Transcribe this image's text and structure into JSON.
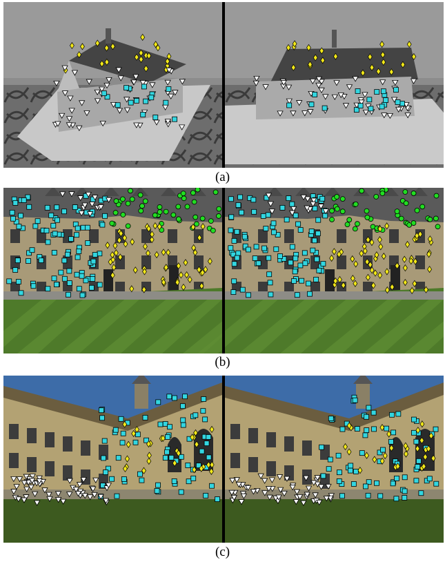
{
  "figure": {
    "panels": [
      {
        "caption": "(a)",
        "scene": "model-house"
      },
      {
        "caption": "(b)",
        "scene": "college-quad-1"
      },
      {
        "caption": "(c)",
        "scene": "college-quad-2"
      }
    ],
    "marker_colors": {
      "white_triangle": "#ffffff",
      "cyan_square": "#33d6e0",
      "yellow_diamond": "#f2e81a",
      "green_circle": "#22dd22"
    }
  }
}
